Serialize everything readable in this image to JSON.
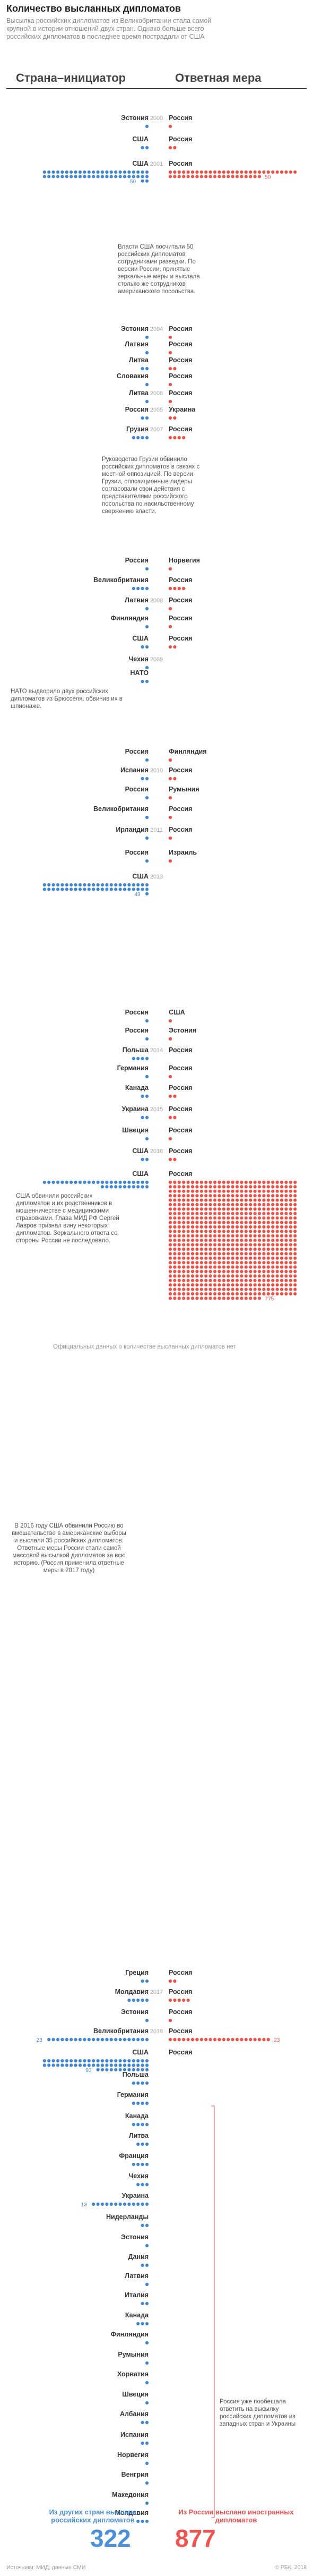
{
  "title": "Количество высланных дипломатов",
  "lead": "Высылка российских дипломатов из Великобритании стала самой крупной в истории отношений двух стран. Однако больше всего российских дипломатов в последнее время пострадали от США",
  "col_left": "Страна–инициатор",
  "col_right": "Ответная мера",
  "colors": {
    "left": "#3e86d2",
    "right": "#ef4f45",
    "year": "#aaaaaa",
    "label": "#333333"
  },
  "chart_data": {
    "type": "dot-matrix",
    "rows": [
      {
        "year": "2000",
        "left": "Эстония",
        "l": 1,
        "right": "Россия",
        "r": 1
      },
      {
        "year": "",
        "left": "США",
        "l": 2,
        "right": "Россия",
        "r": 2
      },
      {
        "year": "2001",
        "left": "США",
        "l": 50,
        "right": "Россия",
        "r": 50,
        "lnum": "50",
        "rnum": "50"
      },
      {
        "year": "2004",
        "left": "Эстония",
        "l": 1,
        "right": "Россия",
        "r": 1
      },
      {
        "year": "",
        "left": "Латвия",
        "l": 1,
        "right": "Россия",
        "r": 1
      },
      {
        "year": "",
        "left": "Литва",
        "l": 2,
        "right": "Россия",
        "r": 2
      },
      {
        "year": "",
        "left": "Словакия",
        "l": 1,
        "right": "Россия",
        "r": 1
      },
      {
        "year": "2006",
        "left": "Литва",
        "l": 1,
        "right": "Россия",
        "r": 1
      },
      {
        "year": "2005",
        "left": "Россия",
        "l": 2,
        "right": "Украина",
        "r": 2
      },
      {
        "year": "2007",
        "left": "Грузия",
        "l": 4,
        "right": "Россия",
        "r": 4
      },
      {
        "year": "",
        "left": "Россия",
        "l": 1,
        "right": "Норвегия",
        "r": 1
      },
      {
        "year": "",
        "left": "Великобритания",
        "l": 4,
        "right": "Россия",
        "r": 4
      },
      {
        "year": "2008",
        "left": "Латвия",
        "l": 1,
        "right": "Россия",
        "r": 1
      },
      {
        "year": "",
        "left": "Финляндия",
        "l": 1,
        "right": "Россия",
        "r": 1
      },
      {
        "year": "",
        "left": "США",
        "l": 2,
        "right": "Россия",
        "r": 2
      },
      {
        "year": "2009",
        "left": "Чехия",
        "l": 1,
        "right": "",
        "r": 0
      },
      {
        "year": "",
        "left": "НАТО",
        "l": 2,
        "right": "",
        "r": 0
      },
      {
        "year": "",
        "left": "Россия",
        "l": 1,
        "right": "Финляндия",
        "r": 1
      },
      {
        "year": "2010",
        "left": "Испания",
        "l": 2,
        "right": "Россия",
        "r": 2
      },
      {
        "year": "",
        "left": "Россия",
        "l": 1,
        "right": "Румыния",
        "r": 1
      },
      {
        "year": "",
        "left": "Великобритания",
        "l": 1,
        "right": "Россия",
        "r": 1
      },
      {
        "year": "2011",
        "left": "Ирландия",
        "l": 1,
        "right": "Россия",
        "r": 1
      },
      {
        "year": "",
        "left": "Россия",
        "l": 1,
        "right": "Израиль",
        "r": 1
      },
      {
        "year": "2013",
        "left": "США",
        "l": 49,
        "right": "",
        "r": 0,
        "lnum": "49"
      },
      {
        "year": "",
        "left": "Россия",
        "l": 1,
        "right": "США",
        "r": 1
      },
      {
        "year": "",
        "left": "Россия",
        "l": 1,
        "right": "Эстония",
        "r": 1
      },
      {
        "year": "2014",
        "left": "Польша",
        "l": 4,
        "right": "Россия",
        "r": 0
      },
      {
        "year": "",
        "left": "Германия",
        "l": 1,
        "right": "Россия",
        "r": 1
      },
      {
        "year": "",
        "left": "Канада",
        "l": 2,
        "right": "Россия",
        "r": 2
      },
      {
        "year": "2015",
        "left": "Украина",
        "l": 2,
        "right": "Россия",
        "r": 2
      },
      {
        "year": "",
        "left": "Швеция",
        "l": 1,
        "right": "Россия",
        "r": 1
      },
      {
        "year": "2016",
        "left": "США",
        "l": 2,
        "right": "Россия",
        "r": 2
      },
      {
        "year": "",
        "left": "США",
        "l": 35,
        "right": "Россия",
        "r": 775,
        "rnum": "775"
      },
      {
        "year": "",
        "left": "Греция",
        "l": 2,
        "right": "Россия",
        "r": 2
      },
      {
        "year": "2017",
        "left": "Молдавия",
        "l": 5,
        "right": "Россия",
        "r": 5
      },
      {
        "year": "",
        "left": "Эстония",
        "l": 1,
        "right": "Россия",
        "r": 1
      },
      {
        "year": "2018",
        "left": "Великобритания",
        "l": 23,
        "right": "Россия",
        "r": 23,
        "lnum": "23",
        "rnum": "23"
      },
      {
        "year": "",
        "left": "США",
        "l": 60,
        "right": "Россия",
        "r": 0,
        "lnum": "60"
      },
      {
        "year": "",
        "left": "Польша",
        "l": 4,
        "right": "",
        "r": 0
      },
      {
        "year": "",
        "left": "Германия",
        "l": 4,
        "right": "",
        "r": 0
      },
      {
        "year": "",
        "left": "Канада",
        "l": 4,
        "right": "",
        "r": 0
      },
      {
        "year": "",
        "left": "Литва",
        "l": 3,
        "right": "",
        "r": 0
      },
      {
        "year": "",
        "left": "Франция",
        "l": 4,
        "right": "",
        "r": 0
      },
      {
        "year": "",
        "left": "Чехия",
        "l": 3,
        "right": "",
        "r": 0
      },
      {
        "year": "",
        "left": "Украина",
        "l": 13,
        "right": "",
        "r": 0,
        "lnum": "13"
      },
      {
        "year": "",
        "left": "Нидерланды",
        "l": 2,
        "right": "",
        "r": 0
      },
      {
        "year": "",
        "left": "Эстония",
        "l": 1,
        "right": "",
        "r": 0
      },
      {
        "year": "",
        "left": "Дания",
        "l": 2,
        "right": "",
        "r": 0
      },
      {
        "year": "",
        "left": "Латвия",
        "l": 1,
        "right": "",
        "r": 0
      },
      {
        "year": "",
        "left": "Италия",
        "l": 2,
        "right": "",
        "r": 0
      },
      {
        "year": "",
        "left": "Канада",
        "l": 3,
        "right": "",
        "r": 0
      },
      {
        "year": "",
        "left": "Финляндия",
        "l": 1,
        "right": "",
        "r": 0
      },
      {
        "year": "",
        "left": "Румыния",
        "l": 1,
        "right": "",
        "r": 0
      },
      {
        "year": "",
        "left": "Хорватия",
        "l": 1,
        "right": "",
        "r": 0
      },
      {
        "year": "",
        "left": "Швеция",
        "l": 1,
        "right": "",
        "r": 0
      },
      {
        "year": "",
        "left": "Албания",
        "l": 2,
        "right": "",
        "r": 0
      },
      {
        "year": "",
        "left": "Испания",
        "l": 2,
        "right": "",
        "r": 0
      },
      {
        "year": "",
        "left": "Норвегия",
        "l": 1,
        "right": "",
        "r": 0
      },
      {
        "year": "",
        "left": "Венгрия",
        "l": 1,
        "right": "",
        "r": 0
      },
      {
        "year": "",
        "left": "Македония",
        "l": 1,
        "right": "",
        "r": 0
      },
      {
        "year": "",
        "left": "Молдавия",
        "l": 3,
        "right": "",
        "r": 0
      }
    ]
  },
  "notes": {
    "usa2001": "Власти США посчитали 50 российских дипломатов сотрудниками разведки. По версии России, принятые зеркальные меры и выслала столько же сотрудников американского посольства.",
    "georgia2007": "Руководство Грузии обвинило российских дипломатов в связях с местной оппозицией. По версии Грузии, оппозиционные лидеры согласовали свои действия с представителями российского посольства по насильственному свержению власти.",
    "nato2009": "НАТО выдворило двух российских дипломатов из Брюсселя, обвинив их в шпионаже.",
    "usa2013": "США обвинили российских дипломатов и их родственников в мошенничестве с медицинскими страховками. Глава МИД РФ Сергей Лавров признал вину некоторых дипломатов. Зеркального ответа со стороны России не последовало.",
    "gap": "Официальных данных о количестве высланных дипломатов нет",
    "usa2016": "В 2016 году США обвинили Россию во вмешательстве в американские выборы и выслали 35 российских дипломатов. Ответные меры России стали самой массовой высылкой дипломатов за всю историю. (Россия применила ответные меры в 2017 году)",
    "side": "Россия уже пообещала ответить на высылку российских дипломатов из западных стран и Украины"
  },
  "totals": {
    "left_label": "Из других стран выслано российских дипломатов",
    "left_value": "322",
    "right_label": "Из России выслано иностранных дипломатов",
    "right_value": "877"
  },
  "source": "Источники: МИД, данные СМИ",
  "credit": "© РБК, 2018"
}
